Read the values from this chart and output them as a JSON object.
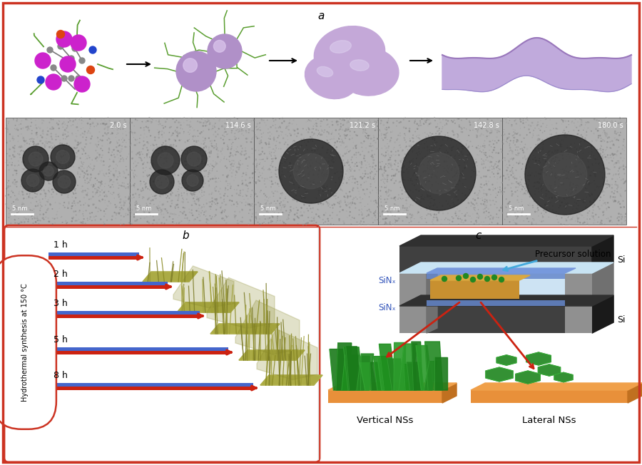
{
  "figure_width": 9.0,
  "figure_height": 6.52,
  "dpi": 100,
  "outer_border_color": "#cc3322",
  "outer_border_lw": 2.5,
  "background_color": "#ffffff",
  "label_a": "a",
  "label_b": "b",
  "label_c": "c",
  "label_fontsize": 11,
  "label_fontstyle": "italic",
  "micro_times": [
    "2.0 s",
    "114.6 s",
    "121.2 s",
    "142.8 s",
    "180.0 s"
  ],
  "micro_scale": "5 nm",
  "panel_b_border_color": "#cc3322",
  "panel_b_times": [
    "1 h",
    "2 h",
    "3 h",
    "5 h",
    "8 h"
  ],
  "panel_b_label": "Hydrothermal synthesis at 150 °C",
  "sinx_label": "SiNₓ",
  "si_label": "Si",
  "precursor_label": "Precursor solution",
  "vertical_ns_label": "Vertical NSs",
  "lateral_ns_label": "Lateral NSs",
  "sphere_color_light": "#c4a8d8",
  "sphere_color_med": "#b090c8",
  "sheet_color": "#c0aadc",
  "ligand_color": "#5a9e30",
  "sinx_color": "#4466bb",
  "electrode_color": "#c8943a",
  "green_ns_color": "#1e8822",
  "orange_base_color": "#e8903a",
  "precursor_arrow_color": "#44aadd",
  "red_arrow_color": "#cc2211",
  "gray_block_color": "#333333",
  "gray_block_face": "#555555",
  "gray_spacer_color": "#888888"
}
